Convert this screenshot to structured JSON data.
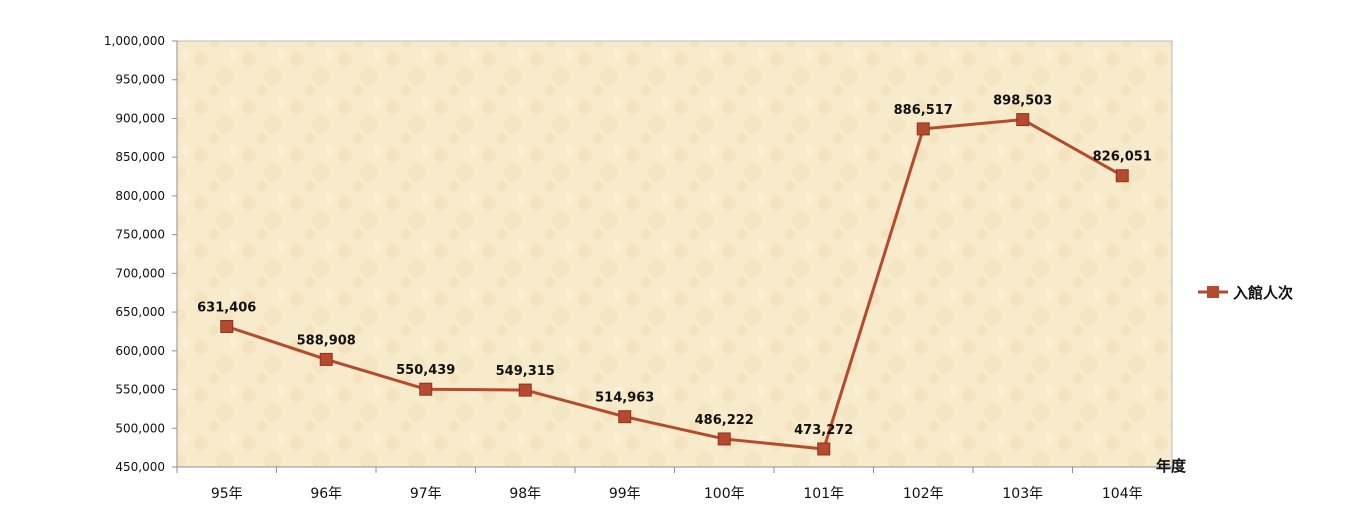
{
  "colors": {
    "series": "#B64A2E",
    "plot_bg": "#F8EBCB",
    "plot_border": "#B7BEC6",
    "grid": "none",
    "axis_text": "#111111"
  },
  "chart_data": {
    "type": "line",
    "title": "",
    "xlabel": "年度",
    "ylabel": "",
    "categories": [
      "95年",
      "96年",
      "97年",
      "98年",
      "99年",
      "100年",
      "101年",
      "102年",
      "103年",
      "104年"
    ],
    "series": [
      {
        "name": "入館人次",
        "values": [
          631406,
          588908,
          550439,
          549315,
          514963,
          486222,
          473272,
          886517,
          898503,
          826051
        ],
        "labels": [
          "631,406",
          "588,908",
          "550,439",
          "549,315",
          "514,963",
          "486,222",
          "473,272",
          "886,517",
          "898,503",
          "826,051"
        ],
        "marker": "square"
      }
    ],
    "ylim": [
      450000,
      1000000
    ],
    "yticks": [
      450000,
      500000,
      550000,
      600000,
      650000,
      700000,
      750000,
      800000,
      850000,
      900000,
      950000,
      1000000
    ],
    "ytick_labels": [
      "450,000",
      "500,000",
      "550,000",
      "600,000",
      "650,000",
      "700,000",
      "750,000",
      "800,000",
      "850,000",
      "900,000",
      "950,000",
      "1,000,000"
    ],
    "grid": false,
    "legend": "right"
  }
}
